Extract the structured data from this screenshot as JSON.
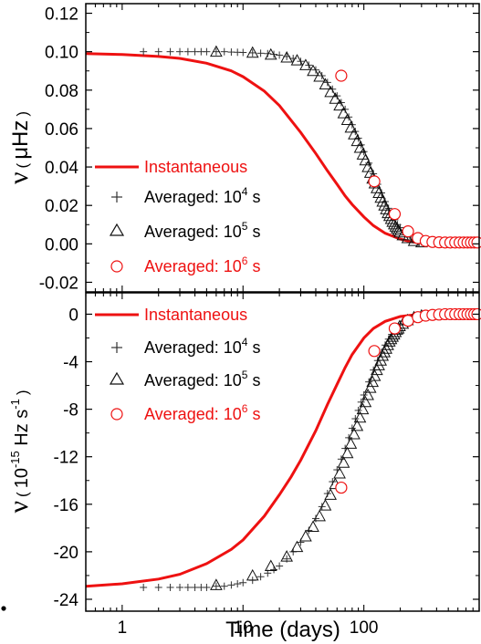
{
  "chart_data": [
    {
      "type": "line",
      "panel": "top",
      "ylabel_symbol": "ν",
      "ylabel_paren": "(",
      "ylabel_unit": "μHz",
      "ylabel_paren_close": ")",
      "xscale": "log",
      "xlim": [
        0.5,
        900
      ],
      "ylim": [
        -0.025,
        0.125
      ],
      "yticks": [
        "-0.02",
        "0.00",
        "0.02",
        "0.04",
        "0.06",
        "0.08",
        "0.10",
        "0.12"
      ],
      "ytick_values": [
        -0.02,
        0.0,
        0.02,
        0.04,
        0.06,
        0.08,
        0.1,
        0.12
      ],
      "legend_position": "left",
      "series": [
        {
          "name": "Instantaneous",
          "marker": "line",
          "color": "#ee1111",
          "x": [
            0.5,
            1,
            2,
            3,
            5,
            8,
            10,
            15,
            20,
            30,
            40,
            50,
            60,
            70,
            80,
            100,
            120,
            150,
            200,
            250,
            300,
            400,
            500,
            700,
            900
          ],
          "y": [
            0.099,
            0.0985,
            0.0975,
            0.0965,
            0.094,
            0.09,
            0.087,
            0.0795,
            0.072,
            0.058,
            0.047,
            0.038,
            0.031,
            0.025,
            0.0205,
            0.014,
            0.0095,
            0.0055,
            0.0025,
            0.001,
            0.0005,
            0.0002,
            0.0001,
            0.0,
            0.0
          ]
        },
        {
          "name_prefix": "Averaged: ",
          "name_base": "10",
          "name_exp": "4",
          "name_unit": " s",
          "marker": "plus",
          "color": "#333333",
          "x": [
            1.5,
            2,
            2.5,
            3,
            3.5,
            4,
            4.5,
            5,
            6,
            7,
            8,
            9,
            10,
            12,
            14,
            16,
            18,
            20,
            23,
            26,
            30,
            35,
            40,
            45,
            50,
            55,
            60,
            65,
            70,
            75,
            80,
            85,
            90,
            95,
            100,
            110,
            120,
            130,
            140,
            150,
            160,
            170,
            180,
            190,
            200,
            220,
            240,
            260,
            280,
            300,
            350,
            400,
            450,
            500,
            600,
            700,
            800,
            900
          ],
          "y": [
            0.1,
            0.1,
            0.1,
            0.1,
            0.1,
            0.1,
            0.1,
            0.1,
            0.1,
            0.1,
            0.0998,
            0.0997,
            0.0996,
            0.0994,
            0.0992,
            0.099,
            0.0986,
            0.0982,
            0.0975,
            0.0965,
            0.095,
            0.093,
            0.0905,
            0.0875,
            0.084,
            0.0805,
            0.077,
            0.0735,
            0.07,
            0.066,
            0.062,
            0.0585,
            0.055,
            0.0515,
            0.048,
            0.042,
            0.0365,
            0.031,
            0.0265,
            0.022,
            0.0185,
            0.015,
            0.0125,
            0.01,
            0.0085,
            0.0055,
            0.0035,
            0.0022,
            0.0014,
            0.0009,
            0.0004,
            0.0002,
            0.0001,
            0.0,
            0.0,
            0.0,
            0.0,
            0.0
          ]
        },
        {
          "name_prefix": "Averaged: ",
          "name_base": "10",
          "name_exp": "5",
          "name_unit": " s",
          "marker": "triangle",
          "color": "#111111",
          "x": [
            6,
            12,
            17,
            23,
            28,
            33,
            38,
            43,
            48,
            53,
            58,
            63,
            68,
            73,
            78,
            83,
            88,
            93,
            98,
            103,
            108,
            113,
            118,
            123,
            128,
            133,
            138,
            143,
            148,
            153,
            158,
            163,
            168,
            173,
            178,
            183,
            188,
            193,
            198,
            210,
            230,
            260,
            300
          ],
          "y": [
            0.1,
            0.0995,
            0.0985,
            0.097,
            0.0955,
            0.093,
            0.09,
            0.087,
            0.083,
            0.079,
            0.0755,
            0.072,
            0.068,
            0.0645,
            0.0605,
            0.057,
            0.0535,
            0.05,
            0.0465,
            0.0435,
            0.04,
            0.037,
            0.034,
            0.0315,
            0.029,
            0.0265,
            0.024,
            0.022,
            0.02,
            0.018,
            0.016,
            0.0145,
            0.013,
            0.0115,
            0.0102,
            0.009,
            0.008,
            0.007,
            0.006,
            0.0045,
            0.003,
            0.0015,
            0.0008
          ]
        },
        {
          "name_prefix": "Averaged: ",
          "name_base": "10",
          "name_exp": "6",
          "name_unit": " s",
          "marker": "circle",
          "color": "#ee1111",
          "x": [
            65,
            122,
            180,
            232,
            280,
            325,
            370,
            420,
            470,
            520,
            570,
            620,
            670,
            720,
            770,
            820,
            870
          ],
          "y": [
            0.0875,
            0.0325,
            0.0155,
            0.0065,
            0.003,
            0.0015,
            0.001,
            0.0008,
            0.0007,
            0.0007,
            0.0007,
            0.0007,
            0.0007,
            0.0007,
            0.0007,
            0.0007,
            0.0007
          ]
        }
      ]
    },
    {
      "type": "line",
      "panel": "bottom",
      "ylabel_symbol": "ν",
      "ylabel_paren": "(",
      "ylabel_unit_base": "10",
      "ylabel_unit_exp": "-15",
      "ylabel_unit_mid": " Hz s",
      "ylabel_unit_exp2": "-1",
      "ylabel_paren_close": ")",
      "xlabel": "Time (days)",
      "xscale": "log",
      "xlim": [
        0.5,
        900
      ],
      "xticks": [
        "1",
        "10",
        "100"
      ],
      "xtick_values": [
        1,
        10,
        100
      ],
      "ylim": [
        -25,
        1.8
      ],
      "yticks": [
        "-24",
        "-20",
        "-16",
        "-12",
        "-8",
        "-4",
        "0"
      ],
      "ytick_values": [
        -24,
        -20,
        -16,
        -12,
        -8,
        -4,
        0
      ],
      "legend_position": "left",
      "series": [
        {
          "name": "Instantaneous",
          "marker": "line",
          "color": "#ee1111",
          "x": [
            0.5,
            1,
            2,
            3,
            5,
            8,
            10,
            15,
            20,
            25,
            30,
            40,
            50,
            60,
            70,
            80,
            100,
            120,
            150,
            200,
            250,
            300,
            400,
            500,
            700,
            900
          ],
          "y": [
            -22.9,
            -22.7,
            -22.3,
            -21.9,
            -21.0,
            -19.8,
            -19.0,
            -17.0,
            -15.2,
            -13.7,
            -12.3,
            -9.8,
            -7.6,
            -5.9,
            -4.5,
            -3.4,
            -2.0,
            -1.2,
            -0.6,
            -0.2,
            -0.08,
            -0.04,
            -0.01,
            0.0,
            0.0,
            0.0
          ]
        },
        {
          "name_prefix": "Averaged: ",
          "name_base": "10",
          "name_exp": "4",
          "name_unit": " s",
          "marker": "plus",
          "color": "#333333",
          "x": [
            1.5,
            2,
            2.5,
            3,
            3.5,
            4,
            4.5,
            5,
            6,
            7,
            8,
            9,
            10,
            12,
            14,
            16,
            18,
            20,
            23,
            26,
            30,
            35,
            40,
            45,
            50,
            55,
            60,
            65,
            70,
            75,
            80,
            85,
            90,
            95,
            100,
            110,
            120,
            130,
            140,
            150,
            160,
            170,
            180,
            190,
            200,
            220,
            240,
            260,
            280,
            300,
            350,
            400,
            450,
            500,
            600,
            700,
            800,
            900
          ],
          "y": [
            -23.0,
            -23.0,
            -23.0,
            -23.0,
            -23.0,
            -23.0,
            -23.0,
            -23.0,
            -22.9,
            -22.9,
            -22.8,
            -22.7,
            -22.6,
            -22.4,
            -22.1,
            -21.8,
            -21.5,
            -21.2,
            -20.6,
            -20.0,
            -19.2,
            -18.2,
            -17.2,
            -16.2,
            -15.1,
            -14.1,
            -13.1,
            -12.2,
            -11.3,
            -10.4,
            -9.6,
            -8.8,
            -8.1,
            -7.4,
            -6.8,
            -5.7,
            -4.7,
            -3.9,
            -3.2,
            -2.6,
            -2.1,
            -1.7,
            -1.4,
            -1.1,
            -0.9,
            -0.6,
            -0.4,
            -0.25,
            -0.15,
            -0.1,
            -0.04,
            -0.02,
            -0.01,
            0.0,
            0.0,
            0.0,
            0.0,
            0.0
          ]
        },
        {
          "name_prefix": "Averaged: ",
          "name_base": "10",
          "name_exp": "5",
          "name_unit": " s",
          "marker": "triangle",
          "color": "#111111",
          "x": [
            6,
            12,
            17,
            23,
            28,
            33,
            38,
            43,
            48,
            53,
            58,
            63,
            68,
            73,
            78,
            83,
            88,
            93,
            98,
            103,
            108,
            113,
            118,
            123,
            128,
            133,
            138,
            143,
            148,
            153,
            158,
            163,
            168,
            173,
            178,
            183,
            188,
            193,
            198,
            210,
            230,
            260,
            300
          ],
          "y": [
            -22.8,
            -22.0,
            -21.2,
            -20.4,
            -19.6,
            -18.7,
            -17.9,
            -17.0,
            -16.1,
            -15.2,
            -14.3,
            -13.4,
            -12.5,
            -11.7,
            -10.9,
            -10.1,
            -9.4,
            -8.7,
            -8.0,
            -7.4,
            -6.8,
            -6.2,
            -5.7,
            -5.2,
            -4.7,
            -4.3,
            -3.9,
            -3.5,
            -3.2,
            -2.9,
            -2.6,
            -2.3,
            -2.1,
            -1.9,
            -1.7,
            -1.5,
            -1.3,
            -1.2,
            -1.0,
            -0.8,
            -0.5,
            -0.25,
            -0.1
          ]
        },
        {
          "name_prefix": "Averaged: ",
          "name_base": "10",
          "name_exp": "6",
          "name_unit": " s",
          "marker": "circle",
          "color": "#ee1111",
          "x": [
            65,
            122,
            180,
            232,
            280,
            325,
            370,
            420,
            470,
            520,
            570,
            620,
            670,
            720,
            770,
            820,
            870
          ],
          "y": [
            -14.6,
            -3.1,
            -1.2,
            -0.55,
            -0.25,
            -0.12,
            -0.06,
            -0.03,
            0.0,
            0.0,
            0.0,
            0.0,
            0.0,
            0.0,
            0.0,
            0.0,
            0.0
          ]
        }
      ]
    }
  ]
}
